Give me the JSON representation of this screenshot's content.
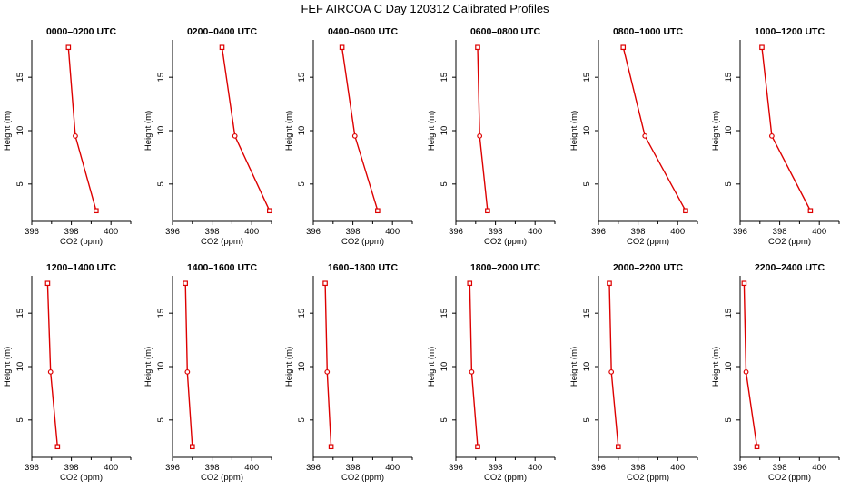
{
  "main_title": "FEF AIRCOA C  Day 120312  Calibrated Profiles",
  "series_color": "#dd0000",
  "chart_data": {
    "type": "line",
    "layout": "2 rows x 6 panels",
    "xlabel": "CO2 (ppm)",
    "ylabel": "Height (m)",
    "xlim": [
      396,
      401
    ],
    "ylim": [
      1.5,
      18.5
    ],
    "xticks": [
      396,
      398,
      400
    ],
    "yticks": [
      5,
      10,
      15
    ],
    "heights": [
      2.5,
      9.5,
      17.8
    ],
    "panels": [
      {
        "title": "0000–0200 UTC",
        "co2": [
          399.25,
          398.2,
          397.85
        ]
      },
      {
        "title": "0200–0400 UTC",
        "co2": [
          400.9,
          399.15,
          398.5
        ]
      },
      {
        "title": "0400–0600 UTC",
        "co2": [
          399.25,
          398.1,
          397.45
        ]
      },
      {
        "title": "0600–0800 UTC",
        "co2": [
          397.6,
          397.2,
          397.1
        ]
      },
      {
        "title": "0800–1000 UTC",
        "co2": [
          400.4,
          398.35,
          397.25
        ]
      },
      {
        "title": "1000–1200 UTC",
        "co2": [
          399.55,
          397.6,
          397.1
        ]
      },
      {
        "title": "1200–1400 UTC",
        "co2": [
          397.3,
          396.95,
          396.8
        ]
      },
      {
        "title": "1400–1600 UTC",
        "co2": [
          397.0,
          396.75,
          396.65
        ]
      },
      {
        "title": "1600–1800 UTC",
        "co2": [
          396.9,
          396.7,
          396.6
        ]
      },
      {
        "title": "1800–2000 UTC",
        "co2": [
          397.1,
          396.8,
          396.7
        ]
      },
      {
        "title": "2000–2200 UTC",
        "co2": [
          397.0,
          396.65,
          396.55
        ]
      },
      {
        "title": "2200–2400 UTC",
        "co2": [
          396.85,
          396.3,
          396.2
        ]
      }
    ]
  }
}
